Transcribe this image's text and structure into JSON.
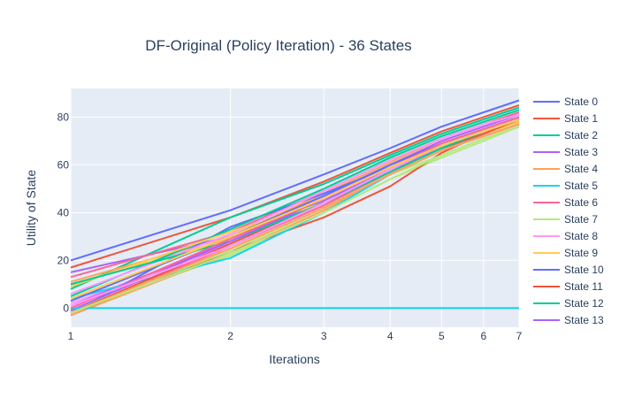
{
  "chart_data": {
    "type": "line",
    "title": "DF-Original (Policy Iteration) - 36 States",
    "xlabel": "Iterations",
    "ylabel": "Utility of State",
    "x_scale": "log",
    "x_ticks": [
      1,
      2,
      3,
      4,
      5,
      6,
      7
    ],
    "y_ticks": [
      0,
      20,
      40,
      60,
      80
    ],
    "xlim": [
      1,
      7
    ],
    "ylim": [
      -8,
      92
    ],
    "grid": true,
    "legend_position": "right",
    "x": [
      1,
      2,
      3,
      4,
      5,
      6,
      7
    ],
    "series": [
      {
        "name": "State 0",
        "color": "#636efa",
        "values": [
          20,
          41,
          56,
          67,
          76,
          82,
          87
        ]
      },
      {
        "name": "State 1",
        "color": "#EF553B",
        "values": [
          17,
          38,
          53,
          65,
          74,
          80,
          85
        ]
      },
      {
        "name": "State 2",
        "color": "#00cc96",
        "values": [
          8,
          38,
          52,
          64,
          73,
          79,
          84
        ]
      },
      {
        "name": "State 3",
        "color": "#ab63fa",
        "values": [
          15,
          30,
          47,
          60,
          70,
          76,
          81
        ]
      },
      {
        "name": "State 4",
        "color": "#FFA15A",
        "values": [
          11,
          30,
          48,
          61,
          71,
          77,
          82
        ]
      },
      {
        "name": "State 5",
        "color": "#19d3f3",
        "values": [
          0,
          0,
          0,
          0,
          0,
          0,
          0
        ]
      },
      {
        "name": "State 6",
        "color": "#FF6692",
        "values": [
          13,
          32,
          49,
          62,
          71,
          77,
          82
        ]
      },
      {
        "name": "State 7",
        "color": "#B6E880",
        "values": [
          -1,
          22,
          40,
          54,
          63,
          70,
          76
        ]
      },
      {
        "name": "State 8",
        "color": "#FF97FF",
        "values": [
          2,
          27,
          45,
          59,
          69,
          75,
          80
        ]
      },
      {
        "name": "State 9",
        "color": "#FECB52",
        "values": [
          10,
          29,
          46,
          59,
          68,
          74,
          79
        ]
      },
      {
        "name": "State 10",
        "color": "#636efa",
        "values": [
          -2,
          34,
          48,
          59,
          68,
          74,
          79
        ]
      },
      {
        "name": "State 11",
        "color": "#EF553B",
        "values": [
          -3,
          24,
          38,
          51,
          65,
          73,
          78
        ]
      },
      {
        "name": "State 12",
        "color": "#00cc96",
        "values": [
          5,
          33,
          50,
          63,
          72,
          78,
          83
        ]
      },
      {
        "name": "State 13",
        "color": "#ab63fa",
        "values": [
          1,
          28,
          45,
          58,
          67,
          73,
          79
        ]
      },
      {
        "color": "#FFA15A",
        "values": [
          -3,
          23,
          41,
          56,
          66,
          72,
          77
        ]
      },
      {
        "color": "#19d3f3",
        "values": [
          4,
          21,
          40,
          56,
          66,
          73,
          78
        ]
      },
      {
        "color": "#FF6692",
        "values": [
          -2,
          26,
          43,
          57,
          67,
          73,
          78
        ]
      },
      {
        "color": "#B6E880",
        "values": [
          -1,
          24,
          42,
          56,
          64,
          71,
          76
        ]
      },
      {
        "color": "#FF97FF",
        "values": [
          6,
          31,
          49,
          62,
          71,
          77,
          81
        ]
      },
      {
        "color": "#FECB52",
        "values": [
          9,
          32,
          44,
          57,
          67,
          73,
          78
        ]
      },
      {
        "color": "#636efa",
        "values": [
          3,
          30,
          47,
          60,
          69,
          75,
          80
        ]
      },
      {
        "color": "#EF553B",
        "values": [
          -2,
          27,
          44,
          57,
          67,
          73,
          79
        ]
      },
      {
        "color": "#00cc96",
        "values": [
          10,
          28,
          44,
          57,
          67,
          74,
          79
        ]
      },
      {
        "color": "#ab63fa",
        "values": [
          -1,
          28,
          46,
          59,
          69,
          75,
          80
        ]
      },
      {
        "color": "#FFA15A",
        "values": [
          -2,
          25,
          42,
          56,
          66,
          72,
          77
        ]
      },
      {
        "color": "#19d3f3",
        "values": [
          0,
          0,
          0,
          0,
          0,
          0,
          0
        ]
      },
      {
        "color": "#FF6692",
        "values": [
          0,
          29,
          46,
          59,
          69,
          75,
          80
        ]
      },
      {
        "color": "#B6E880",
        "values": [
          -2,
          23,
          40,
          54,
          64,
          71,
          76
        ]
      },
      {
        "color": "#FF97FF",
        "values": [
          1,
          26,
          44,
          58,
          68,
          74,
          79
        ]
      },
      {
        "color": "#FECB52",
        "values": [
          4,
          30,
          46,
          59,
          68,
          74,
          79
        ]
      }
    ]
  }
}
